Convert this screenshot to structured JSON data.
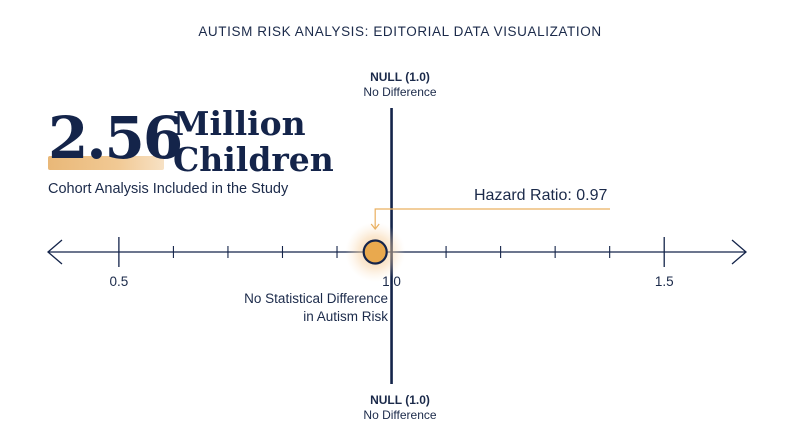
{
  "title": "AUTISM RISK ANALYSIS: EDITORIAL DATA VISUALIZATION",
  "stat": {
    "number": "2.56",
    "unit_line1": "Million",
    "unit_line2": "Children",
    "caption": "Cohort Analysis Included in the Study"
  },
  "null_top": {
    "main": "NULL (1.0)",
    "sub": "No Difference"
  },
  "null_bottom": {
    "main": "NULL (1.0)",
    "sub": "No Difference"
  },
  "annotation": {
    "label": "Hazard Ratio: 0.97"
  },
  "no_diff": {
    "line1": "No Statistical Difference",
    "line2": "in Autism Risk"
  },
  "colors": {
    "navy": "#14244a",
    "accent": "#e9b060",
    "point_fill": "#e9a94e",
    "glow": "#f4c48a"
  },
  "chart_data": {
    "type": "scatter",
    "title": "AUTISM RISK ANALYSIS: EDITORIAL DATA VISUALIZATION",
    "xlabel": "",
    "ylabel": "",
    "xlim": [
      0.37,
      1.65
    ],
    "major_ticks": [
      0.5,
      1.0,
      1.5
    ],
    "tick_labels": [
      "0.5",
      "1.0",
      "1.5"
    ],
    "minor_ticks": [
      0.6,
      0.7,
      0.8,
      0.9,
      1.1,
      1.2,
      1.3,
      1.4
    ],
    "null_value": 1.0,
    "point": {
      "x": 0.97,
      "label": "Hazard Ratio: 0.97"
    },
    "grid": false
  }
}
